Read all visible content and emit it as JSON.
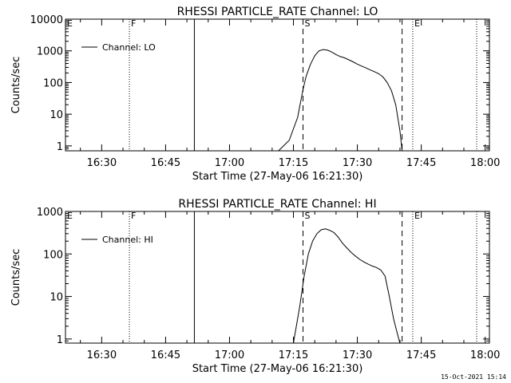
{
  "footer": {
    "timestamp": "15-Oct-2021 15:14"
  },
  "chart_data": [
    {
      "type": "line",
      "title": "RHESSI PARTICLE_RATE Channel: LO",
      "xlabel": "Start Time (27-May-06 16:21:30)",
      "ylabel": "Counts/sec",
      "y_scale": "log",
      "x_unit": "minutes",
      "xlim": [
        "16:21:30",
        "18:01:00"
      ],
      "ylim": [
        0.7,
        10000
      ],
      "x_ticks": [
        "16:30",
        "16:45",
        "17:00",
        "17:15",
        "17:30",
        "17:45",
        "18:00"
      ],
      "y_ticks": [
        {
          "value": 1,
          "label": "1"
        },
        {
          "value": 10,
          "label": "10"
        },
        {
          "value": 100,
          "label": "100"
        },
        {
          "value": 1000,
          "label": "1000"
        },
        {
          "value": 10000,
          "label": "10000"
        }
      ],
      "legend": {
        "label": "Channel: LO",
        "position": "top-left"
      },
      "markers": [
        {
          "label": "E",
          "time": "16:21:30",
          "style": "dotted"
        },
        {
          "label": "F",
          "time": "16:36:30",
          "style": "dotted"
        },
        {
          "label": "",
          "time": "16:51:45",
          "style": "solid"
        },
        {
          "label": "S",
          "time": "17:17:15",
          "style": "dashed"
        },
        {
          "label": "",
          "time": "17:40:30",
          "style": "dashed"
        },
        {
          "label": "E",
          "time": "17:43:00",
          "style": "dotted"
        },
        {
          "label": "",
          "time": "17:58:00",
          "style": "dotted"
        }
      ],
      "series": [
        {
          "name": "Channel: LO",
          "x": [
            "17:11:30",
            "17:14:00",
            "17:16:00",
            "17:17:15",
            "17:18:00",
            "17:19:00",
            "17:20:00",
            "17:21:00",
            "17:22:00",
            "17:23:00",
            "17:24:00",
            "17:25:00",
            "17:26:00",
            "17:27:00",
            "17:28:00",
            "17:29:00",
            "17:30:00",
            "17:31:00",
            "17:32:00",
            "17:33:00",
            "17:34:00",
            "17:35:00",
            "17:36:00",
            "17:37:00",
            "17:38:00",
            "17:39:00",
            "17:40:00",
            "17:40:30"
          ],
          "values": [
            0.7,
            1.5,
            8,
            60,
            160,
            380,
            700,
            1000,
            1100,
            1050,
            920,
            760,
            660,
            600,
            520,
            450,
            380,
            330,
            290,
            250,
            220,
            190,
            150,
            100,
            55,
            20,
            3,
            0.7
          ]
        }
      ]
    },
    {
      "type": "line",
      "title": "RHESSI PARTICLE_RATE Channel: HI",
      "xlabel": "Start Time (27-May-06 16:21:30)",
      "ylabel": "Counts/sec",
      "y_scale": "log",
      "x_unit": "minutes",
      "xlim": [
        "16:21:30",
        "18:01:00"
      ],
      "ylim": [
        0.8,
        1000
      ],
      "x_ticks": [
        "16:30",
        "16:45",
        "17:00",
        "17:15",
        "17:30",
        "17:45",
        "18:00"
      ],
      "y_ticks": [
        {
          "value": 1,
          "label": "1"
        },
        {
          "value": 10,
          "label": "10"
        },
        {
          "value": 100,
          "label": "100"
        },
        {
          "value": 1000,
          "label": "1000"
        }
      ],
      "legend": {
        "label": "Channel: HI",
        "position": "top-left"
      },
      "markers": [
        {
          "label": "E",
          "time": "16:21:30",
          "style": "dotted"
        },
        {
          "label": "F",
          "time": "16:36:30",
          "style": "dotted"
        },
        {
          "label": "",
          "time": "16:51:45",
          "style": "solid"
        },
        {
          "label": "S",
          "time": "17:17:15",
          "style": "dashed"
        },
        {
          "label": "",
          "time": "17:40:30",
          "style": "dashed"
        },
        {
          "label": "E",
          "time": "17:43:00",
          "style": "dotted"
        },
        {
          "label": "",
          "time": "17:58:00",
          "style": "dotted"
        }
      ],
      "series": [
        {
          "name": "Channel: HI",
          "x": [
            "17:15:00",
            "17:16:30",
            "17:17:30",
            "17:18:30",
            "17:19:30",
            "17:20:30",
            "17:21:30",
            "17:22:30",
            "17:23:30",
            "17:24:30",
            "17:25:30",
            "17:26:30",
            "17:27:30",
            "17:28:30",
            "17:29:30",
            "17:30:30",
            "17:31:30",
            "17:32:30",
            "17:33:30",
            "17:34:30",
            "17:35:30",
            "17:36:30",
            "17:37:30",
            "17:38:30",
            "17:39:30",
            "17:40:00"
          ],
          "values": [
            0.8,
            6,
            30,
            100,
            200,
            300,
            370,
            390,
            360,
            320,
            250,
            180,
            140,
            110,
            90,
            75,
            65,
            58,
            52,
            48,
            42,
            30,
            10,
            3,
            1.2,
            0.8
          ]
        }
      ]
    }
  ]
}
